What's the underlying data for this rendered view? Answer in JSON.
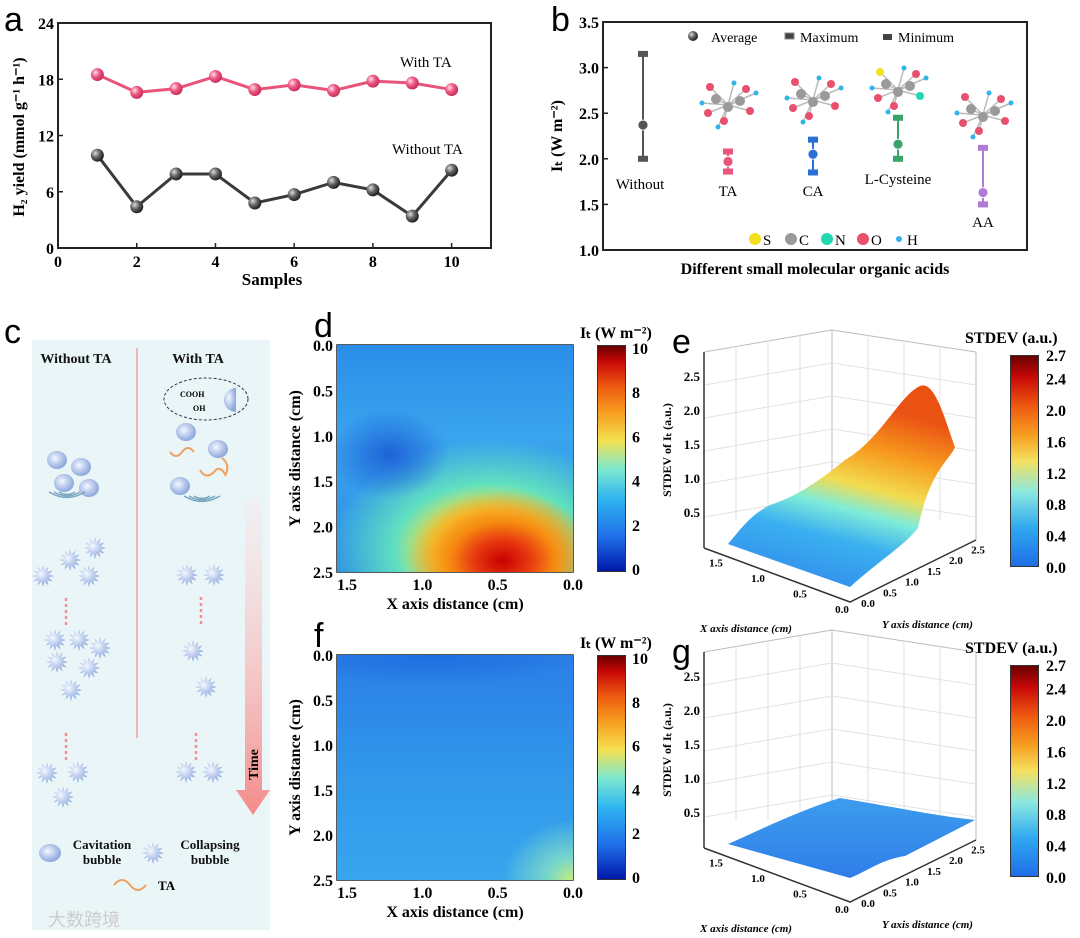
{
  "panels": {
    "a": "a",
    "b": "b",
    "c": "c",
    "d": "d",
    "e": "e",
    "f": "f",
    "g": "g"
  },
  "chart_data": [
    {
      "id": "a",
      "type": "line",
      "xlabel": "Samples",
      "ylabel": "H₂ yield (mmol g⁻¹ h⁻¹)",
      "xlim": [
        0,
        11
      ],
      "ylim": [
        0,
        24
      ],
      "xticks": [
        0,
        2,
        4,
        6,
        8,
        10
      ],
      "yticks": [
        0,
        6,
        12,
        18,
        24
      ],
      "x": [
        1,
        2,
        3,
        4,
        5,
        6,
        7,
        8,
        9,
        10
      ],
      "series": [
        {
          "name": "With TA",
          "color": "#e8547a",
          "values": [
            18.5,
            16.6,
            17.0,
            18.3,
            16.9,
            17.4,
            16.8,
            17.8,
            17.6,
            16.9
          ]
        },
        {
          "name": "Without TA",
          "color": "#3a3a3a",
          "values": [
            9.9,
            4.4,
            7.9,
            7.9,
            4.8,
            5.7,
            7.0,
            6.2,
            3.4,
            8.3
          ]
        }
      ]
    },
    {
      "id": "b",
      "type": "range",
      "xlabel": "Different  small molecular organic acids",
      "ylabel": "Iₜ (W m⁻²)",
      "ylim": [
        1.0,
        3.5
      ],
      "yticks": [
        "1.0",
        "1.5",
        "2.0",
        "2.5",
        "3.0",
        "3.5"
      ],
      "legend": {
        "average": "Average",
        "maximum": "Maximum",
        "minimum": "Minimum",
        "position": "top"
      },
      "categories": [
        {
          "name": "Without",
          "color": "#555555",
          "average": 2.37,
          "maximum": 3.15,
          "minimum": 2.0
        },
        {
          "name": "TA",
          "color": "#e8547a",
          "average": 1.97,
          "maximum": 2.08,
          "minimum": 1.86
        },
        {
          "name": "CA",
          "color": "#2a6fd6",
          "average": 2.05,
          "maximum": 2.21,
          "minimum": 1.85
        },
        {
          "name": "L-Cysteine",
          "color": "#3aa36a",
          "average": 2.16,
          "maximum": 2.45,
          "minimum": 2.0
        },
        {
          "name": "AA",
          "color": "#b07ad8",
          "average": 1.63,
          "maximum": 2.12,
          "minimum": 1.5
        }
      ],
      "atom_legend": [
        {
          "label": "S",
          "color": "#f2e020"
        },
        {
          "label": "C",
          "color": "#9a9a9a"
        },
        {
          "label": "N",
          "color": "#20d8b0"
        },
        {
          "label": "O",
          "color": "#e8506e"
        },
        {
          "label": "H",
          "color": "#30b4ea"
        }
      ]
    },
    {
      "id": "d",
      "type": "heatmap",
      "xlabel": "X axis distance (cm)",
      "ylabel": "Y axis distance (cm)",
      "xticks": [
        "1.5",
        "1.0",
        "0.5",
        "0.0"
      ],
      "yticks": [
        "0.0",
        "0.5",
        "1.0",
        "1.5",
        "2.0",
        "2.5"
      ],
      "colorbar_title": "Iₜ (W m⁻²)",
      "colorbar_ticks": [
        "10",
        "8",
        "6",
        "4",
        "2",
        "0"
      ],
      "zlim": [
        0,
        10
      ]
    },
    {
      "id": "e",
      "type": "surface",
      "xlabel": "X axis distance (cm)",
      "ylabel": "Y axis distance (cm)",
      "zlabel": "STDEV of Iₜ (a.u.)",
      "zticks": [
        "0.5",
        "1.0",
        "1.5",
        "2.0",
        "2.5"
      ],
      "xticks": [
        "1.5",
        "1.0",
        "0.5",
        "0.0"
      ],
      "yticks": [
        "0.0",
        "0.5",
        "1.0",
        "1.5",
        "2.0",
        "2.5"
      ],
      "colorbar_title": "STDEV (a.u.)",
      "colorbar_ticks": [
        "2.7",
        "2.4",
        "2.0",
        "1.6",
        "1.2",
        "0.8",
        "0.4",
        "0.0"
      ],
      "zlim": [
        0,
        2.7
      ]
    },
    {
      "id": "f",
      "type": "heatmap",
      "xlabel": "X axis distance (cm)",
      "ylabel": "Y axis distance (cm)",
      "xticks": [
        "1.5",
        "1.0",
        "0.5",
        "0.0"
      ],
      "yticks": [
        "0.0",
        "0.5",
        "1.0",
        "1.5",
        "2.0",
        "2.5"
      ],
      "colorbar_title": "Iₜ (W m⁻²)",
      "colorbar_ticks": [
        "10",
        "8",
        "6",
        "4",
        "2",
        "0"
      ],
      "zlim": [
        0,
        10
      ]
    },
    {
      "id": "g",
      "type": "surface",
      "xlabel": "X axis distance (cm)",
      "ylabel": "Y axis distance (cm)",
      "zlabel": "STDEV of Iₜ (a.u.)",
      "zticks": [
        "0.5",
        "1.0",
        "1.5",
        "2.0",
        "2.5"
      ],
      "xticks": [
        "1.5",
        "1.0",
        "0.5",
        "0.0"
      ],
      "yticks": [
        "0.0",
        "0.5",
        "1.0",
        "1.5",
        "2.0",
        "2.5"
      ],
      "colorbar_title": "STDEV (a.u.)",
      "colorbar_ticks": [
        "2.7",
        "2.4",
        "2.0",
        "1.6",
        "1.2",
        "0.8",
        "0.4",
        "0.0"
      ],
      "zlim": [
        0,
        2.7
      ]
    }
  ],
  "schematic": {
    "left_title": "Without TA",
    "right_title": "With TA",
    "cooh": "COOH",
    "oh": "OH",
    "time": "Time",
    "legend_cavitation": "Cavitation bubble",
    "legend_collapsing": "Collapsing bubble",
    "legend_ta": "TA"
  },
  "watermark": "大数跨境"
}
